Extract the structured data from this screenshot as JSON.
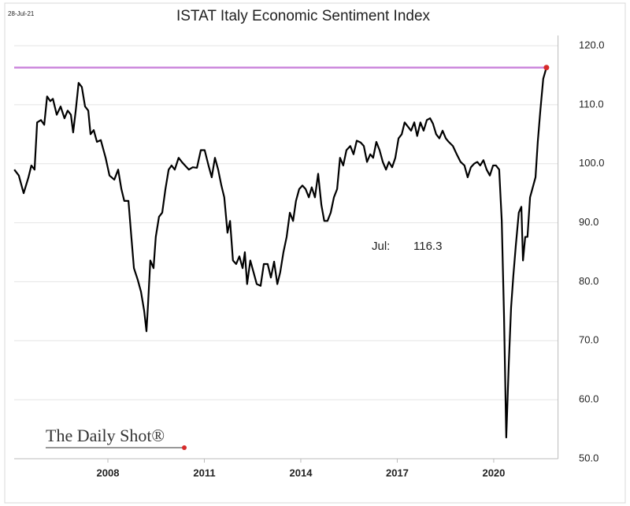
{
  "chart_data": {
    "type": "line",
    "title": "ISTAT Italy Economic Sentiment Index",
    "date": "28-Jul-21",
    "source": "The Daily Shot®",
    "annotation": {
      "label": "Jul:",
      "value": 116.3
    },
    "reference_line": {
      "value": 116.3,
      "color": "#cc88dd"
    },
    "x": [
      2005.09,
      2005.23,
      2005.38,
      2005.53,
      2005.62,
      2005.72,
      2005.8,
      2005.92,
      2006.02,
      2006.11,
      2006.21,
      2006.29,
      2006.41,
      2006.53,
      2006.65,
      2006.75,
      2006.85,
      2006.92,
      2007.0,
      2007.09,
      2007.19,
      2007.29,
      2007.39,
      2007.46,
      2007.56,
      2007.66,
      2007.78,
      2007.93,
      2008.05,
      2008.2,
      2008.32,
      2008.42,
      2008.51,
      2008.64,
      2008.73,
      2008.81,
      2008.93,
      2009.03,
      2009.13,
      2009.2,
      2009.25,
      2009.32,
      2009.42,
      2009.49,
      2009.59,
      2009.69,
      2009.79,
      2009.89,
      2009.98,
      2010.08,
      2010.2,
      2010.3,
      2010.4,
      2010.52,
      2010.64,
      2010.77,
      2010.89,
      2011.01,
      2011.13,
      2011.23,
      2011.33,
      2011.43,
      2011.53,
      2011.62,
      2011.72,
      2011.8,
      2011.89,
      2011.99,
      2012.09,
      2012.19,
      2012.26,
      2012.33,
      2012.43,
      2012.53,
      2012.63,
      2012.75,
      2012.85,
      2012.97,
      2013.07,
      2013.17,
      2013.27,
      2013.36,
      2013.46,
      2013.56,
      2013.66,
      2013.76,
      2013.85,
      2013.95,
      2014.05,
      2014.15,
      2014.25,
      2014.34,
      2014.44,
      2014.54,
      2014.64,
      2014.73,
      2014.83,
      2014.93,
      2015.03,
      2015.13,
      2015.22,
      2015.32,
      2015.42,
      2015.54,
      2015.64,
      2015.74,
      2015.86,
      2015.96,
      2016.06,
      2016.16,
      2016.25,
      2016.35,
      2016.45,
      2016.55,
      2016.65,
      2016.74,
      2016.84,
      2016.94,
      2017.04,
      2017.14,
      2017.23,
      2017.33,
      2017.43,
      2017.53,
      2017.62,
      2017.72,
      2017.82,
      2017.92,
      2018.02,
      2018.11,
      2018.21,
      2018.31,
      2018.41,
      2018.51,
      2018.6,
      2018.73,
      2018.85,
      2018.97,
      2019.09,
      2019.19,
      2019.29,
      2019.39,
      2019.49,
      2019.58,
      2019.68,
      2019.78,
      2019.88,
      2019.98,
      2020.07,
      2020.17,
      2020.25,
      2020.32,
      2020.39,
      2020.47,
      2020.54,
      2020.61,
      2020.69,
      2020.78,
      2020.86,
      2020.91,
      2020.98,
      2021.05,
      2021.13,
      2021.2,
      2021.3,
      2021.37,
      2021.45,
      2021.54,
      2021.64
    ],
    "series": [
      {
        "name": "ISTAT Italy Economic Sentiment Index",
        "color": "#000000",
        "last_point_color": "#d62b2b",
        "values": [
          99,
          98,
          95,
          97.7,
          99.7,
          99,
          107,
          107.4,
          106.6,
          111.4,
          110.6,
          111,
          108.3,
          109.7,
          107.7,
          109,
          108.3,
          105.3,
          109,
          113.7,
          113,
          109.7,
          109,
          105,
          105.7,
          103.7,
          104,
          101,
          98,
          97.3,
          99,
          95.7,
          93.7,
          93.7,
          87.6,
          82.3,
          80.3,
          78.3,
          75,
          71.6,
          76.3,
          83.6,
          82.3,
          87.6,
          91,
          91.7,
          95.7,
          99,
          99.7,
          99,
          101,
          100.3,
          99.7,
          99,
          99.4,
          99.3,
          102.3,
          102.3,
          99.7,
          97.7,
          101,
          99,
          96.3,
          94.3,
          88.3,
          90.3,
          83.6,
          83,
          84.3,
          82.3,
          85,
          79.6,
          83.6,
          81.6,
          79.6,
          79.3,
          83,
          83,
          80.7,
          83.4,
          79.6,
          81.6,
          85,
          87.6,
          91.7,
          90.3,
          93.7,
          95.7,
          96.3,
          95.7,
          94.3,
          96,
          94.3,
          98.3,
          93,
          90.3,
          90.3,
          91.7,
          94.3,
          95.7,
          101,
          99.7,
          102.3,
          103,
          101.6,
          103.9,
          103.6,
          103,
          100.3,
          101.6,
          101,
          103.7,
          102.3,
          100.3,
          99,
          100.3,
          99.4,
          101,
          104.3,
          105,
          107,
          106.3,
          105.6,
          107,
          104.7,
          107,
          105.6,
          107.4,
          107.7,
          106.8,
          105,
          104.3,
          105.6,
          104.3,
          103.7,
          103,
          101.6,
          100.3,
          99.7,
          97.7,
          99.4,
          100,
          100.3,
          99.7,
          100.6,
          99,
          98,
          99.7,
          99.7,
          99,
          90.3,
          74.3,
          53.6,
          66.3,
          75.6,
          81,
          86.3,
          91.7,
          92.7,
          83.6,
          87.6,
          87.6,
          94.3,
          95.7,
          97.7,
          103.7,
          109,
          114.4,
          116.3
        ]
      }
    ],
    "xlim": [
      2005,
      2022
    ],
    "xticks": [
      2008,
      2011,
      2014,
      2017,
      2020
    ],
    "ylim": [
      50,
      120
    ],
    "yticks": [
      {
        "value": 50,
        "label": "50.0"
      },
      {
        "value": 60,
        "label": "60.0"
      },
      {
        "value": 70,
        "label": "70.0"
      },
      {
        "value": 80,
        "label": "80.0"
      },
      {
        "value": 90,
        "label": "90.0"
      },
      {
        "value": 100,
        "label": "100.0"
      },
      {
        "value": 110,
        "label": "110.0"
      },
      {
        "value": 120,
        "label": "120.0"
      }
    ],
    "grid": true
  }
}
